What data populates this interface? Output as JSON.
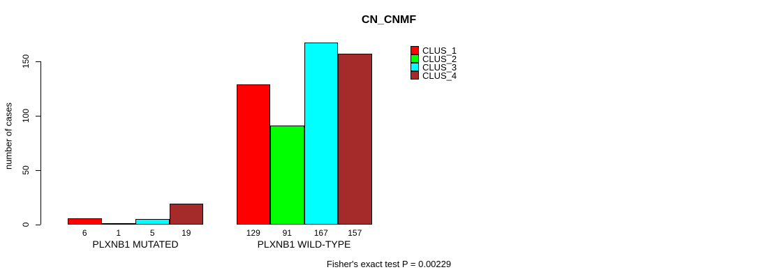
{
  "chart_data": {
    "type": "bar",
    "title": "CN_CNMF",
    "xlabel": "",
    "ylabel": "number of cases",
    "annotation": "Fisher's exact test P = 0.00229",
    "categories": [
      "PLXNB1 MUTATED",
      "PLXNB1 WILD-TYPE"
    ],
    "series": [
      {
        "name": "CLUS_1",
        "color": "#ff0000",
        "values": [
          6,
          129
        ]
      },
      {
        "name": "CLUS_2",
        "color": "#00ff00",
        "values": [
          1,
          91
        ]
      },
      {
        "name": "CLUS_3",
        "color": "#00ffff",
        "values": [
          5,
          167
        ]
      },
      {
        "name": "CLUS_4",
        "color": "#a52a2a",
        "values": [
          19,
          157
        ]
      }
    ],
    "bar_labels": [
      [
        "6",
        "1",
        "5",
        "19"
      ],
      [
        "129",
        "91",
        "167",
        "157"
      ]
    ],
    "yticks": [
      0,
      50,
      100,
      150
    ],
    "ylim": [
      0,
      170
    ],
    "grid": false,
    "legend_position": "upper-right-inside",
    "background_color": "#ffffff",
    "text_color": "#000000"
  }
}
